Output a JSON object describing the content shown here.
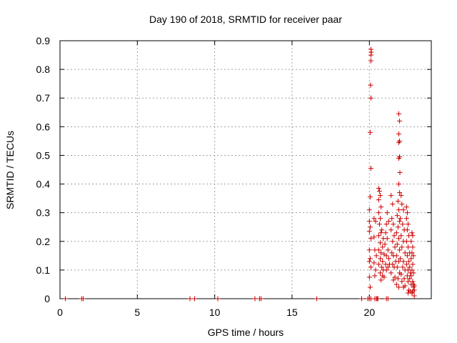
{
  "chart_data": {
    "type": "scatter",
    "title": "Day 190 of 2018, SRMTID for receiver paar",
    "xlabel": "GPS time / hours",
    "ylabel": "SRMTID / TECUs",
    "xlim": [
      0,
      24
    ],
    "ylim": [
      0,
      0.9
    ],
    "xticks": [
      0,
      5,
      10,
      15,
      20
    ],
    "xtick_labels": [
      "0",
      "5",
      "10",
      "15",
      "20"
    ],
    "yticks": [
      0,
      0.1,
      0.2,
      0.3,
      0.4,
      0.5,
      0.6,
      0.7,
      0.8,
      0.9
    ],
    "ytick_labels": [
      "0",
      "0.1",
      "0.2",
      "0.3",
      "0.4",
      "0.5",
      "0.6",
      "0.7",
      "0.8",
      "0.9"
    ],
    "grid": true,
    "marker": "+",
    "marker_color": "#cc0000",
    "series": [
      {
        "name": "SRMTID",
        "points": [
          [
            0.35,
            0.0
          ],
          [
            1.4,
            0.0
          ],
          [
            1.5,
            0.0
          ],
          [
            8.4,
            0.0
          ],
          [
            8.7,
            0.0
          ],
          [
            10.2,
            0.0
          ],
          [
            12.6,
            0.0
          ],
          [
            12.9,
            0.0
          ],
          [
            13.0,
            0.0
          ],
          [
            16.6,
            0.0
          ],
          [
            19.5,
            0.0
          ],
          [
            19.9,
            0.0
          ],
          [
            20.0,
            0.0
          ],
          [
            20.1,
            0.0
          ],
          [
            20.35,
            0.0
          ],
          [
            20.45,
            0.0
          ],
          [
            20.5,
            0.0
          ],
          [
            20.55,
            0.0
          ],
          [
            21.1,
            0.0
          ],
          [
            21.2,
            0.0
          ],
          [
            20.1,
            0.87
          ],
          [
            20.1,
            0.85
          ],
          [
            20.12,
            0.86
          ],
          [
            20.1,
            0.83
          ],
          [
            20.08,
            0.745
          ],
          [
            20.1,
            0.7
          ],
          [
            20.05,
            0.58
          ],
          [
            20.1,
            0.455
          ],
          [
            20.05,
            0.355
          ],
          [
            20.0,
            0.31
          ],
          [
            20.0,
            0.27
          ],
          [
            20.05,
            0.25
          ],
          [
            20.0,
            0.235
          ],
          [
            20.1,
            0.21
          ],
          [
            20.0,
            0.17
          ],
          [
            20.05,
            0.14
          ],
          [
            20.0,
            0.13
          ],
          [
            20.1,
            0.11
          ],
          [
            20.0,
            0.075
          ],
          [
            20.05,
            0.04
          ],
          [
            20.3,
            0.28
          ],
          [
            20.4,
            0.27
          ],
          [
            20.3,
            0.215
          ],
          [
            20.35,
            0.17
          ],
          [
            20.45,
            0.15
          ],
          [
            20.3,
            0.125
          ],
          [
            20.4,
            0.1
          ],
          [
            20.35,
            0.08
          ],
          [
            20.6,
            0.385
          ],
          [
            20.65,
            0.375
          ],
          [
            20.7,
            0.36
          ],
          [
            20.6,
            0.345
          ],
          [
            20.75,
            0.32
          ],
          [
            20.6,
            0.3
          ],
          [
            20.7,
            0.28
          ],
          [
            20.65,
            0.26
          ],
          [
            20.8,
            0.24
          ],
          [
            20.75,
            0.23
          ],
          [
            20.6,
            0.22
          ],
          [
            20.9,
            0.21
          ],
          [
            20.7,
            0.195
          ],
          [
            20.85,
            0.18
          ],
          [
            20.6,
            0.17
          ],
          [
            20.75,
            0.16
          ],
          [
            20.95,
            0.155
          ],
          [
            20.7,
            0.14
          ],
          [
            20.85,
            0.13
          ],
          [
            20.6,
            0.12
          ],
          [
            20.8,
            0.11
          ],
          [
            20.9,
            0.1
          ],
          [
            20.7,
            0.09
          ],
          [
            20.85,
            0.08
          ],
          [
            20.95,
            0.075
          ],
          [
            20.75,
            0.065
          ],
          [
            21.05,
            0.23
          ],
          [
            21.15,
            0.21
          ],
          [
            21.0,
            0.19
          ],
          [
            21.2,
            0.17
          ],
          [
            21.1,
            0.15
          ],
          [
            21.25,
            0.14
          ],
          [
            21.05,
            0.12
          ],
          [
            21.2,
            0.11
          ],
          [
            21.1,
            0.1
          ],
          [
            21.3,
            0.12
          ],
          [
            21.15,
            0.3
          ],
          [
            21.25,
            0.27
          ],
          [
            21.1,
            0.26
          ],
          [
            21.4,
            0.36
          ],
          [
            21.5,
            0.33
          ],
          [
            21.45,
            0.28
          ],
          [
            21.55,
            0.26
          ],
          [
            21.4,
            0.24
          ],
          [
            21.6,
            0.22
          ],
          [
            21.5,
            0.2
          ],
          [
            21.65,
            0.18
          ],
          [
            21.45,
            0.16
          ],
          [
            21.55,
            0.15
          ],
          [
            21.7,
            0.13
          ],
          [
            21.5,
            0.12
          ],
          [
            21.6,
            0.11
          ],
          [
            21.4,
            0.09
          ],
          [
            21.65,
            0.075
          ],
          [
            21.55,
            0.065
          ],
          [
            21.9,
            0.645
          ],
          [
            21.95,
            0.62
          ],
          [
            21.9,
            0.575
          ],
          [
            21.95,
            0.55
          ],
          [
            21.9,
            0.545
          ],
          [
            21.95,
            0.495
          ],
          [
            21.9,
            0.49
          ],
          [
            21.97,
            0.44
          ],
          [
            21.9,
            0.4
          ],
          [
            21.95,
            0.37
          ],
          [
            21.85,
            0.34
          ],
          [
            21.9,
            0.31
          ],
          [
            21.8,
            0.29
          ],
          [
            21.95,
            0.27
          ],
          [
            21.85,
            0.25
          ],
          [
            21.75,
            0.23
          ],
          [
            21.9,
            0.21
          ],
          [
            21.8,
            0.19
          ],
          [
            21.95,
            0.17
          ],
          [
            21.75,
            0.15
          ],
          [
            21.9,
            0.13
          ],
          [
            21.8,
            0.11
          ],
          [
            21.95,
            0.09
          ],
          [
            21.85,
            0.07
          ],
          [
            21.75,
            0.05
          ],
          [
            21.9,
            0.04
          ],
          [
            22.05,
            0.36
          ],
          [
            22.1,
            0.33
          ],
          [
            22.2,
            0.31
          ],
          [
            22.0,
            0.28
          ],
          [
            22.15,
            0.26
          ],
          [
            22.25,
            0.24
          ],
          [
            22.05,
            0.22
          ],
          [
            22.2,
            0.2
          ],
          [
            22.1,
            0.18
          ],
          [
            22.3,
            0.16
          ],
          [
            22.0,
            0.14
          ],
          [
            22.2,
            0.13
          ],
          [
            22.15,
            0.11
          ],
          [
            22.3,
            0.1
          ],
          [
            22.05,
            0.085
          ],
          [
            22.25,
            0.07
          ],
          [
            22.1,
            0.06
          ],
          [
            22.3,
            0.045
          ],
          [
            22.2,
            0.04
          ],
          [
            22.4,
            0.32
          ],
          [
            22.45,
            0.3
          ],
          [
            22.4,
            0.28
          ],
          [
            22.5,
            0.26
          ],
          [
            22.45,
            0.24
          ],
          [
            22.55,
            0.22
          ],
          [
            22.4,
            0.2
          ],
          [
            22.5,
            0.18
          ],
          [
            22.6,
            0.16
          ],
          [
            22.45,
            0.15
          ],
          [
            22.55,
            0.13
          ],
          [
            22.4,
            0.12
          ],
          [
            22.6,
            0.11
          ],
          [
            22.5,
            0.1
          ],
          [
            22.65,
            0.09
          ],
          [
            22.45,
            0.08
          ],
          [
            22.6,
            0.07
          ],
          [
            22.5,
            0.06
          ],
          [
            22.7,
            0.05
          ],
          [
            22.55,
            0.03
          ],
          [
            22.65,
            0.025
          ],
          [
            22.5,
            0.02
          ],
          [
            22.75,
            0.23
          ],
          [
            22.8,
            0.22
          ],
          [
            22.7,
            0.2
          ],
          [
            22.8,
            0.18
          ],
          [
            22.75,
            0.16
          ],
          [
            22.85,
            0.15
          ],
          [
            22.7,
            0.14
          ],
          [
            22.8,
            0.12
          ],
          [
            22.75,
            0.1
          ],
          [
            22.85,
            0.09
          ],
          [
            22.7,
            0.08
          ],
          [
            22.8,
            0.06
          ],
          [
            22.85,
            0.05
          ],
          [
            22.9,
            0.045
          ],
          [
            22.85,
            0.04
          ],
          [
            22.9,
            0.03
          ],
          [
            22.8,
            0.025
          ],
          [
            22.75,
            0.02
          ],
          [
            22.9,
            0.01
          ]
        ]
      }
    ]
  }
}
